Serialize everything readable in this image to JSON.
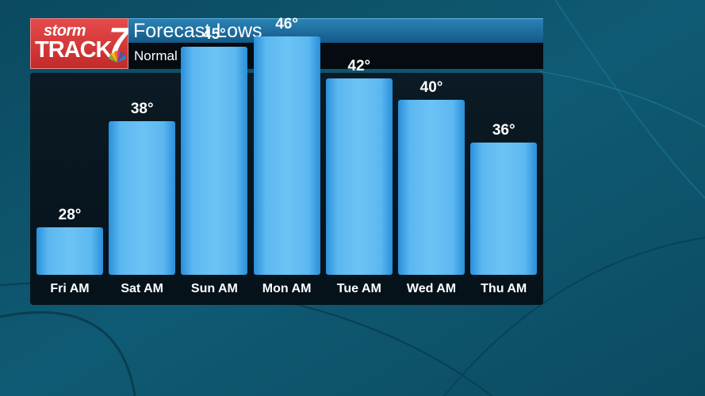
{
  "header": {
    "logo_storm": "storm",
    "logo_track": "TRACK",
    "logo_number": "7",
    "title": "Forecast Lows",
    "subtitle": "Normal Low: 37°"
  },
  "colors": {
    "logo_red": "#d63838",
    "title_blue": "#1f6fa3",
    "bar_blue": "#5cb8f0",
    "background_teal": "#0e5670"
  },
  "chart_data": {
    "type": "bar",
    "title": "Forecast Lows",
    "subtitle": "Normal Low: 37°",
    "categories": [
      "Fri AM",
      "Sat AM",
      "Sun AM",
      "Mon AM",
      "Tue AM",
      "Wed AM",
      "Thu AM"
    ],
    "values": [
      28,
      38,
      45,
      46,
      42,
      40,
      36
    ],
    "value_labels": [
      "28°",
      "38°",
      "45°",
      "46°",
      "42°",
      "40°",
      "36°"
    ],
    "unit": "°",
    "ylim": [
      23.5,
      49
    ],
    "grid": false,
    "legend": "none"
  }
}
